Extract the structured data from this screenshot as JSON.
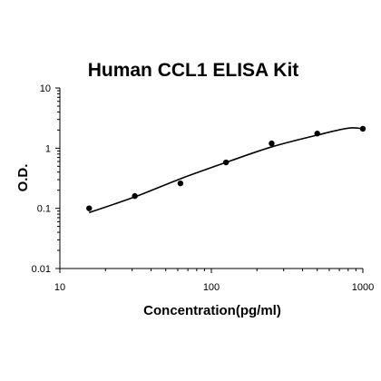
{
  "chart_data": {
    "type": "scatter",
    "title": "Human CCL1 ELISA Kit",
    "xlabel": "Concentration(pg/ml)",
    "ylabel": "O.D.",
    "x_scale": "log",
    "y_scale": "log",
    "xlim": [
      10,
      1000
    ],
    "ylim": [
      0.01,
      10
    ],
    "x_ticks": [
      10,
      100,
      1000
    ],
    "x_tick_labels": [
      "10",
      "100",
      "1000"
    ],
    "y_ticks": [
      0.01,
      0.1,
      1,
      10
    ],
    "y_tick_labels": [
      "0.01",
      "0.1",
      "1",
      "10"
    ],
    "grid": false,
    "series": [
      {
        "points": [
          {
            "x": 15.6,
            "y": 0.1
          },
          {
            "x": 31.25,
            "y": 0.16
          },
          {
            "x": 62.5,
            "y": 0.26
          },
          {
            "x": 125,
            "y": 0.58
          },
          {
            "x": 250,
            "y": 1.2
          },
          {
            "x": 500,
            "y": 1.75
          },
          {
            "x": 1000,
            "y": 2.1
          }
        ],
        "fit_curve": [
          {
            "x": 15.6,
            "y": 0.085
          },
          {
            "x": 31.25,
            "y": 0.155
          },
          {
            "x": 62.5,
            "y": 0.31
          },
          {
            "x": 125,
            "y": 0.58
          },
          {
            "x": 250,
            "y": 1.05
          },
          {
            "x": 500,
            "y": 1.65
          },
          {
            "x": 800,
            "y": 2.15
          },
          {
            "x": 1000,
            "y": 2.1
          }
        ]
      }
    ],
    "colors": {
      "marker": "#000000",
      "line": "#000000",
      "axis": "#000000"
    }
  }
}
